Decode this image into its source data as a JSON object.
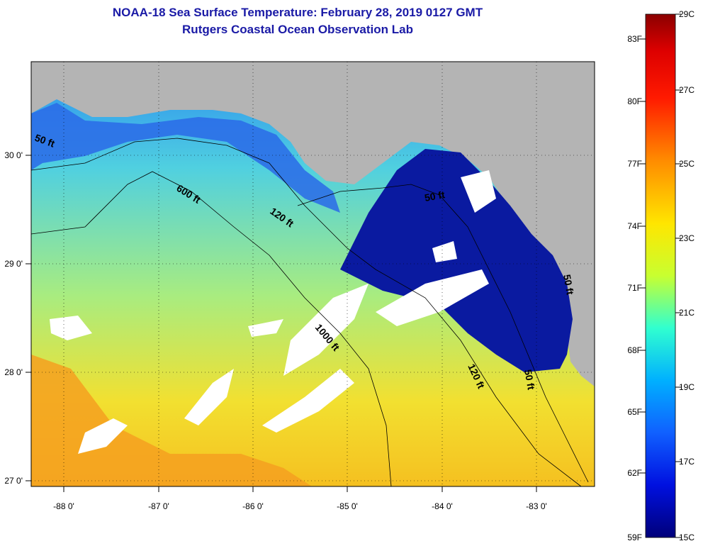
{
  "header": {
    "title": "NOAA-18 Sea Surface Temperature:  February 28, 2019 0127 GMT",
    "subtitle": "Rutgers Coastal Ocean Observation Lab"
  },
  "axes": {
    "lon_labels": [
      "-88 0'",
      "-87 0'",
      "-86 0'",
      "-85 0'",
      "-84 0'",
      "-83 0'"
    ],
    "lat_labels": [
      "30 0'",
      "29 0'",
      "28 0'",
      "27 0'"
    ]
  },
  "contours": {
    "c50a": "50 ft",
    "c600": "600 ft",
    "c120a": "120 ft",
    "c50b": "50 ft",
    "c1000": "1000 ft",
    "c120b": "120 ft",
    "c50c": "50 ft",
    "c50d": "50 ft"
  },
  "colorbar": {
    "fahrenheit": [
      "83F",
      "80F",
      "77F",
      "74F",
      "71F",
      "68F",
      "65F",
      "62F",
      "59F"
    ],
    "celsius": [
      "29C",
      "27C",
      "25C",
      "23C",
      "21C",
      "19C",
      "17C",
      "15C"
    ],
    "colors": [
      "#8b0000",
      "#ff1a00",
      "#ff8c00",
      "#ffe600",
      "#c8ff30",
      "#30ffd0",
      "#00b0ff",
      "#1050ff",
      "#0000a0"
    ]
  },
  "colors": {
    "land": "#b4b4b4",
    "cloud": "#ffffff",
    "warm_water": "#f2e030",
    "mid_water": "#5ee0c8",
    "cool_water": "#2a7cf0",
    "cold_water": "#0a1aa0",
    "title": "#1a1aa6"
  }
}
